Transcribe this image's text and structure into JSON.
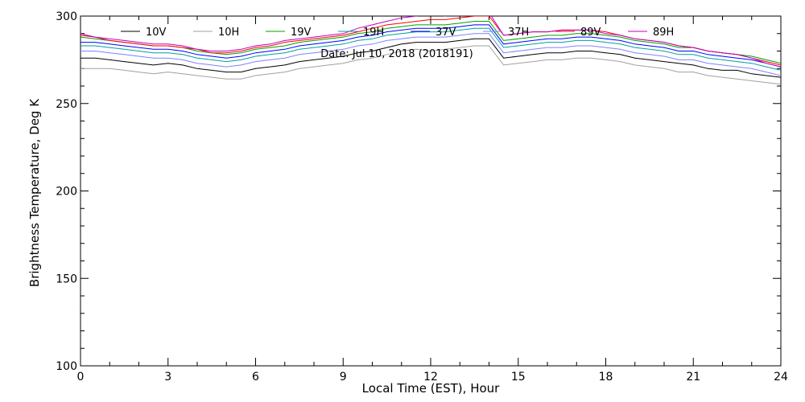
{
  "chart_data": {
    "type": "line",
    "title": "Date: Jul 10, 2018 (2018191)",
    "xlabel": "Local Time (EST), Hour",
    "ylabel": "Brightness Temperature, Deg K",
    "xlim": [
      0,
      24
    ],
    "ylim": [
      100,
      300
    ],
    "x_ticks": [
      0,
      3,
      6,
      9,
      12,
      15,
      18,
      21,
      24
    ],
    "y_ticks": [
      100,
      150,
      200,
      250,
      300
    ],
    "legend_position": "top",
    "grid": false,
    "x": [
      0,
      0.5,
      1,
      1.5,
      2,
      2.5,
      3,
      3.5,
      4,
      4.5,
      5,
      5.5,
      6,
      6.5,
      7,
      7.5,
      8,
      8.5,
      9,
      9.5,
      10,
      10.5,
      11,
      11.5,
      12,
      12.5,
      13,
      13.5,
      14,
      14.5,
      15,
      15.5,
      16,
      16.5,
      17,
      17.5,
      18,
      18.5,
      19,
      19.5,
      20,
      20.5,
      21,
      21.5,
      22,
      22.5,
      23,
      23.5,
      24
    ],
    "series": [
      {
        "name": "10V",
        "color": "#000000",
        "values": [
          276,
          276,
          275,
          274,
          273,
          272,
          273,
          272,
          270,
          269,
          268,
          268,
          270,
          271,
          272,
          274,
          275,
          276,
          277,
          279,
          280,
          282,
          284,
          285,
          285,
          285,
          286,
          287,
          287,
          276,
          277,
          278,
          279,
          279,
          280,
          280,
          279,
          278,
          276,
          275,
          274,
          273,
          272,
          270,
          269,
          269,
          267,
          266,
          265
        ]
      },
      {
        "name": "10H",
        "color": "#a0a0a0",
        "values": [
          270,
          270,
          270,
          269,
          268,
          267,
          268,
          267,
          266,
          265,
          264,
          264,
          266,
          267,
          268,
          270,
          271,
          272,
          273,
          275,
          276,
          278,
          280,
          281,
          280,
          281,
          282,
          283,
          283,
          272,
          273,
          274,
          275,
          275,
          276,
          276,
          275,
          274,
          272,
          271,
          270,
          268,
          268,
          266,
          265,
          264,
          263,
          262,
          261
        ]
      },
      {
        "name": "19V",
        "color": "#00a000",
        "values": [
          288,
          287,
          286,
          285,
          284,
          283,
          283,
          282,
          280,
          279,
          278,
          279,
          281,
          282,
          283,
          285,
          286,
          287,
          288,
          290,
          291,
          293,
          294,
          295,
          295,
          295,
          296,
          297,
          297,
          286,
          287,
          288,
          289,
          289,
          290,
          290,
          289,
          288,
          286,
          285,
          284,
          282,
          282,
          280,
          279,
          278,
          277,
          275,
          273
        ]
      },
      {
        "name": "19H",
        "color": "#00a0a0",
        "values": [
          283,
          283,
          282,
          281,
          280,
          279,
          279,
          278,
          276,
          275,
          274,
          275,
          277,
          278,
          279,
          281,
          282,
          283,
          284,
          286,
          287,
          289,
          290,
          291,
          291,
          291,
          292,
          293,
          293,
          282,
          283,
          284,
          285,
          285,
          286,
          286,
          285,
          284,
          282,
          281,
          280,
          278,
          278,
          276,
          275,
          274,
          273,
          271,
          269
        ]
      },
      {
        "name": "37V",
        "color": "#0000ff",
        "values": [
          285,
          285,
          284,
          283,
          282,
          281,
          281,
          280,
          278,
          277,
          276,
          277,
          279,
          280,
          281,
          283,
          284,
          285,
          286,
          288,
          289,
          291,
          292,
          293,
          293,
          293,
          294,
          295,
          295,
          284,
          285,
          286,
          287,
          287,
          288,
          288,
          287,
          286,
          284,
          283,
          282,
          280,
          280,
          278,
          277,
          276,
          275,
          273,
          271
        ]
      },
      {
        "name": "37H",
        "color": "#8080ff",
        "values": [
          280,
          280,
          279,
          278,
          277,
          276,
          276,
          275,
          273,
          272,
          271,
          272,
          274,
          275,
          276,
          278,
          279,
          280,
          281,
          283,
          284,
          286,
          287,
          288,
          288,
          288,
          289,
          290,
          290,
          279,
          280,
          281,
          282,
          282,
          283,
          283,
          282,
          281,
          279,
          278,
          277,
          275,
          275,
          273,
          272,
          271,
          270,
          268,
          266
        ]
      },
      {
        "name": "89V",
        "color": "#ff0000",
        "values": [
          289,
          288,
          286,
          285,
          284,
          283,
          283,
          282,
          281,
          279,
          279,
          280,
          282,
          283,
          285,
          286,
          287,
          288,
          289,
          291,
          293,
          295,
          296,
          297,
          298,
          298,
          299,
          300,
          300,
          289,
          290,
          291,
          291,
          292,
          292,
          292,
          291,
          289,
          287,
          286,
          285,
          283,
          282,
          280,
          279,
          278,
          276,
          274,
          272
        ]
      },
      {
        "name": "89H",
        "color": "#c000c0",
        "values": [
          290,
          288,
          287,
          286,
          285,
          284,
          284,
          283,
          281,
          280,
          280,
          281,
          283,
          284,
          286,
          287,
          288,
          289,
          290,
          293,
          295,
          297,
          299,
          300,
          302,
          300,
          302,
          303,
          302,
          289,
          290,
          291,
          291,
          292,
          292,
          292,
          290,
          289,
          287,
          286,
          285,
          283,
          282,
          280,
          279,
          278,
          276,
          273,
          271
        ]
      }
    ]
  }
}
